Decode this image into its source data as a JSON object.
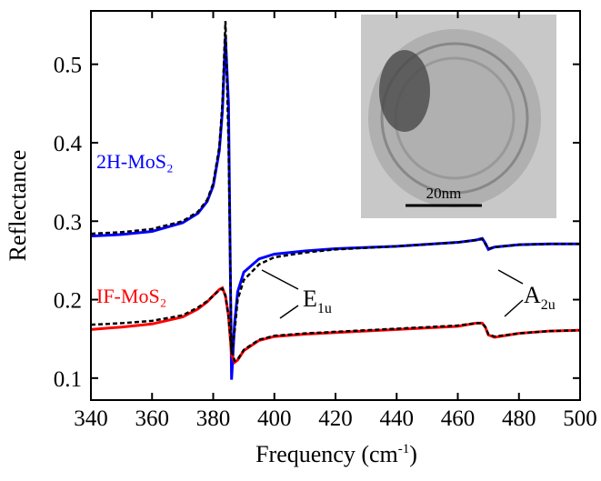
{
  "chart_data": {
    "type": "line",
    "x_label": {
      "text": "Frequency (cm",
      "sup": "-1",
      "after": ")"
    },
    "y_label": "Reflectance",
    "x": [
      340,
      350,
      360,
      370,
      375,
      378,
      380,
      382,
      383,
      384,
      385,
      386,
      387,
      388,
      390,
      395,
      400,
      410,
      420,
      440,
      460,
      466,
      468,
      469,
      470,
      472,
      480,
      490,
      500
    ],
    "series": [
      {
        "name": "2H-MoS₂",
        "color": "#0000ff",
        "dash": false,
        "values": [
          0.281,
          0.283,
          0.287,
          0.298,
          0.31,
          0.325,
          0.345,
          0.39,
          0.44,
          0.535,
          0.45,
          0.098,
          0.17,
          0.21,
          0.235,
          0.252,
          0.258,
          0.262,
          0.265,
          0.268,
          0.273,
          0.276,
          0.278,
          0.272,
          0.264,
          0.267,
          0.27,
          0.271,
          0.271
        ]
      },
      {
        "name": "IF-MoS₂",
        "color": "#ff0000",
        "dash": false,
        "values": [
          0.162,
          0.165,
          0.169,
          0.178,
          0.188,
          0.197,
          0.205,
          0.213,
          0.215,
          0.205,
          0.18,
          0.13,
          0.12,
          0.123,
          0.135,
          0.148,
          0.153,
          0.156,
          0.158,
          0.162,
          0.166,
          0.17,
          0.17,
          0.165,
          0.155,
          0.152,
          0.157,
          0.16,
          0.161
        ]
      },
      {
        "color": "#000000",
        "dash": true,
        "values": [
          0.284,
          0.286,
          0.29,
          0.3,
          0.312,
          0.327,
          0.348,
          0.395,
          0.45,
          0.555,
          0.4,
          0.13,
          0.16,
          0.2,
          0.225,
          0.245,
          0.254,
          0.26,
          0.264,
          0.268,
          0.273,
          0.276,
          0.277,
          0.271,
          0.265,
          0.267,
          0.27,
          0.271,
          0.271
        ]
      },
      {
        "color": "#000000",
        "dash": true,
        "values": [
          0.168,
          0.17,
          0.173,
          0.18,
          0.19,
          0.198,
          0.205,
          0.212,
          0.214,
          0.205,
          0.178,
          0.135,
          0.122,
          0.124,
          0.136,
          0.149,
          0.154,
          0.157,
          0.159,
          0.163,
          0.167,
          0.17,
          0.17,
          0.165,
          0.156,
          0.153,
          0.157,
          0.16,
          0.161
        ]
      }
    ],
    "xlim": [
      340,
      500
    ],
    "ylim": [
      0.072,
      0.568
    ],
    "xticks": [
      340,
      360,
      380,
      400,
      420,
      440,
      460,
      480,
      500
    ],
    "yticks": [
      0.1,
      0.2,
      0.3,
      0.4,
      0.5
    ],
    "annotations": [
      {
        "text": "E",
        "sub": "1u"
      },
      {
        "text": "A",
        "sub": "2u"
      }
    ],
    "inset": {
      "scale_label": "20nm"
    }
  }
}
